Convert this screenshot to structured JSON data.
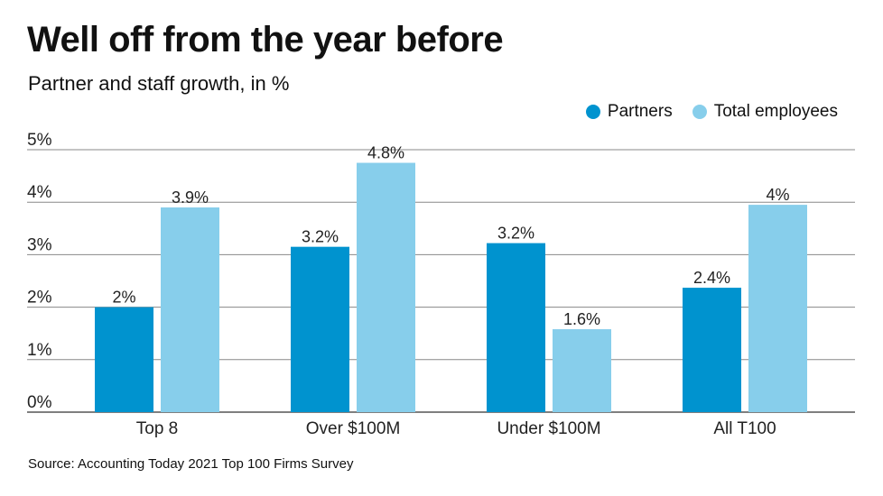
{
  "title": "Well off from the year before",
  "subtitle": "Partner and staff growth, in %",
  "source": "Source: Accounting Today 2021 Top 100 Firms Survey",
  "chart_data": {
    "type": "bar",
    "title": "Well off from the year before",
    "subtitle": "Partner and staff growth, in %",
    "categories": [
      "Top 8",
      "Over $100M",
      "Under $100M",
      "All T100"
    ],
    "series": [
      {
        "name": "Partners",
        "color": "#0093cf",
        "values": [
          2.0,
          3.15,
          3.22,
          2.37
        ],
        "labels": [
          "2%",
          "3.2%",
          "3.2%",
          "2.4%"
        ]
      },
      {
        "name": "Total employees",
        "color": "#87ceeb",
        "values": [
          3.9,
          4.75,
          1.58,
          3.95
        ],
        "labels": [
          "3.9%",
          "4.8%",
          "1.6%",
          "4%"
        ]
      }
    ],
    "yticks": [
      "0%",
      "1%",
      "2%",
      "3%",
      "4%",
      "5%"
    ],
    "ylim": [
      0,
      5
    ],
    "grid": true,
    "legend": "top-right"
  }
}
